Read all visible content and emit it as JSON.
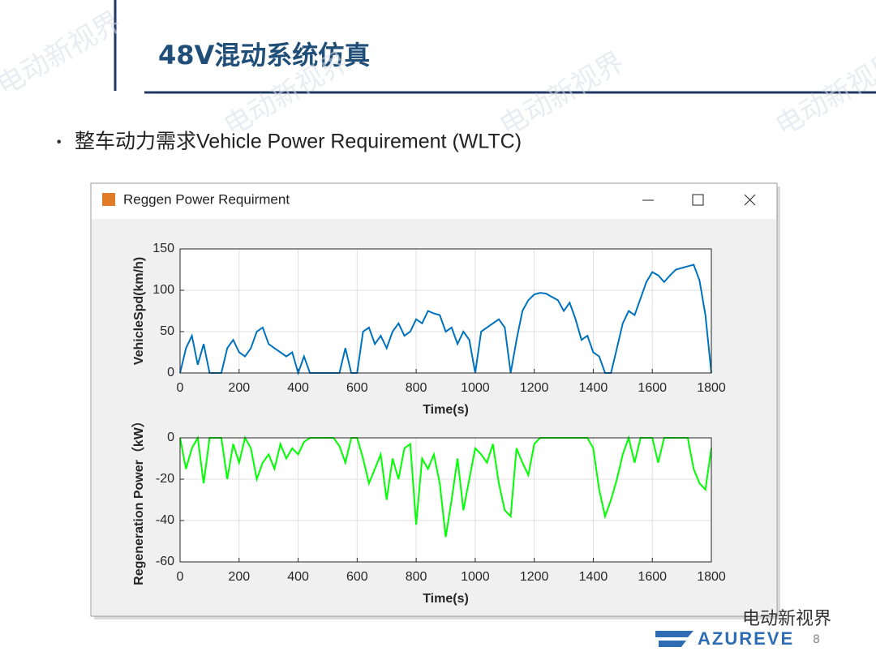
{
  "slide": {
    "title": "48V混动系统仿真",
    "bullet": "整车动力需求Vehicle Power Requirement (WLTC)",
    "watermark": "电动新视界",
    "wechat": "电动新视界",
    "logo": "AZUREVE",
    "page": "8"
  },
  "window": {
    "title": "Reggen Power Requirment"
  },
  "chart_data": [
    {
      "type": "line",
      "ylabel": "VehicleSpd(km/h)",
      "xlabel": "Time(s)",
      "color": "#0072bd",
      "grid": true,
      "xlim": [
        0,
        1800
      ],
      "xticks": [
        0,
        200,
        400,
        600,
        800,
        1000,
        1200,
        1400,
        1600,
        1800
      ],
      "ylim": [
        0,
        150
      ],
      "yticks": [
        0,
        50,
        100,
        150
      ],
      "x": [
        0,
        20,
        40,
        60,
        80,
        100,
        120,
        140,
        160,
        180,
        200,
        220,
        240,
        260,
        280,
        300,
        320,
        340,
        360,
        380,
        400,
        420,
        440,
        460,
        480,
        500,
        520,
        540,
        560,
        580,
        600,
        620,
        640,
        660,
        680,
        700,
        720,
        740,
        760,
        780,
        800,
        820,
        840,
        860,
        880,
        900,
        920,
        940,
        960,
        980,
        1000,
        1020,
        1040,
        1060,
        1080,
        1100,
        1120,
        1140,
        1160,
        1180,
        1200,
        1220,
        1240,
        1260,
        1280,
        1300,
        1320,
        1340,
        1360,
        1380,
        1400,
        1420,
        1440,
        1460,
        1480,
        1500,
        1520,
        1540,
        1560,
        1580,
        1600,
        1620,
        1640,
        1660,
        1680,
        1700,
        1720,
        1740,
        1760,
        1780,
        1800
      ],
      "values": [
        0,
        30,
        45,
        10,
        35,
        0,
        0,
        0,
        30,
        40,
        25,
        20,
        30,
        50,
        55,
        35,
        30,
        25,
        20,
        25,
        0,
        20,
        0,
        0,
        0,
        0,
        0,
        0,
        30,
        0,
        0,
        50,
        55,
        35,
        45,
        30,
        50,
        60,
        45,
        50,
        65,
        60,
        75,
        72,
        70,
        50,
        55,
        35,
        50,
        40,
        0,
        50,
        55,
        60,
        65,
        55,
        0,
        40,
        75,
        88,
        95,
        97,
        96,
        92,
        88,
        75,
        85,
        65,
        40,
        45,
        25,
        20,
        0,
        0,
        30,
        60,
        75,
        70,
        90,
        110,
        122,
        118,
        110,
        118,
        125,
        127,
        129,
        131,
        112,
        70,
        0
      ]
    },
    {
      "type": "line",
      "ylabel": "Regeneration Power（kW）",
      "xlabel": "Time(s)",
      "color": "#00ff00",
      "grid": true,
      "xlim": [
        0,
        1800
      ],
      "xticks": [
        0,
        200,
        400,
        600,
        800,
        1000,
        1200,
        1400,
        1600,
        1800
      ],
      "ylim": [
        -60,
        0
      ],
      "yticks": [
        -60,
        -40,
        -20,
        0
      ],
      "x": [
        0,
        20,
        40,
        60,
        80,
        100,
        120,
        140,
        160,
        180,
        200,
        220,
        240,
        260,
        280,
        300,
        320,
        340,
        360,
        380,
        400,
        420,
        440,
        460,
        480,
        500,
        520,
        540,
        560,
        580,
        600,
        620,
        640,
        660,
        680,
        700,
        720,
        740,
        760,
        780,
        800,
        820,
        840,
        860,
        880,
        900,
        920,
        940,
        960,
        980,
        1000,
        1020,
        1040,
        1060,
        1080,
        1100,
        1120,
        1140,
        1160,
        1180,
        1200,
        1220,
        1240,
        1260,
        1280,
        1300,
        1320,
        1340,
        1360,
        1380,
        1400,
        1420,
        1440,
        1460,
        1480,
        1500,
        1520,
        1540,
        1560,
        1580,
        1600,
        1620,
        1640,
        1660,
        1680,
        1700,
        1720,
        1740,
        1760,
        1780,
        1800
      ],
      "values": [
        0,
        -15,
        -5,
        0,
        -22,
        0,
        0,
        0,
        -20,
        -3,
        -12,
        0,
        -5,
        -20,
        -12,
        -8,
        -15,
        -3,
        -10,
        -5,
        -8,
        -2,
        0,
        0,
        0,
        0,
        0,
        -4,
        -12,
        0,
        0,
        -10,
        -22,
        -15,
        -8,
        -30,
        -10,
        -20,
        -5,
        -3,
        -42,
        -10,
        -15,
        -8,
        -22,
        -48,
        -30,
        -10,
        -35,
        -20,
        -5,
        -8,
        -12,
        -3,
        -22,
        -35,
        -38,
        -5,
        -12,
        -18,
        -3,
        0,
        0,
        0,
        0,
        0,
        0,
        0,
        0,
        0,
        -5,
        -25,
        -38,
        -30,
        -20,
        -8,
        0,
        -12,
        0,
        0,
        0,
        -12,
        0,
        0,
        0,
        0,
        0,
        -15,
        -22,
        -25,
        -5
      ]
    }
  ]
}
